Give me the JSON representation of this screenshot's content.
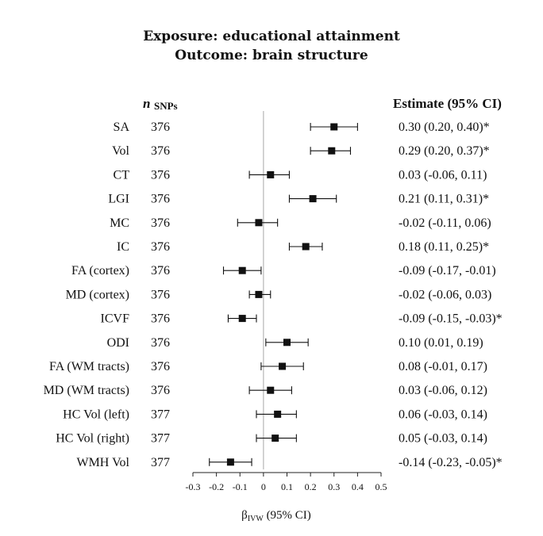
{
  "title_line1": "Exposure: educational attainment",
  "title_line2": "Outcome: brain structure",
  "header_n_symbol": "n",
  "header_n_subscript": "SNPs",
  "header_estimate": "Estimate (95% CI)",
  "chart_data": {
    "type": "forest",
    "title": "Exposure: educational attainment / Outcome: brain structure",
    "xlabel_main": "β",
    "xlabel_sub": "IVW",
    "xlabel_suffix": " (95% CI)",
    "xlim": [
      -0.3,
      0.5
    ],
    "xticks": [
      "-0.3",
      "-0.2",
      "-0.1",
      "0",
      "0.1",
      "0.2",
      "0.3",
      "0.4",
      "0.5"
    ],
    "reference_line": 0,
    "rows": [
      {
        "label": "SA",
        "n": "376",
        "est": 0.3,
        "lo": 0.2,
        "hi": 0.4,
        "text": "0.30 (0.20, 0.40)*"
      },
      {
        "label": "Vol",
        "n": "376",
        "est": 0.29,
        "lo": 0.2,
        "hi": 0.37,
        "text": "0.29 (0.20, 0.37)*"
      },
      {
        "label": "CT",
        "n": "376",
        "est": 0.03,
        "lo": -0.06,
        "hi": 0.11,
        "text": "0.03 (-0.06, 0.11)"
      },
      {
        "label": "LGI",
        "n": "376",
        "est": 0.21,
        "lo": 0.11,
        "hi": 0.31,
        "text": "0.21 (0.11, 0.31)*"
      },
      {
        "label": "MC",
        "n": "376",
        "est": -0.02,
        "lo": -0.11,
        "hi": 0.06,
        "text": "-0.02 (-0.11, 0.06)"
      },
      {
        "label": "IC",
        "n": "376",
        "est": 0.18,
        "lo": 0.11,
        "hi": 0.25,
        "text": "0.18 (0.11, 0.25)*"
      },
      {
        "label": "FA (cortex)",
        "n": "376",
        "est": -0.09,
        "lo": -0.17,
        "hi": -0.01,
        "text": "-0.09 (-0.17, -0.01)"
      },
      {
        "label": "MD (cortex)",
        "n": "376",
        "est": -0.02,
        "lo": -0.06,
        "hi": 0.03,
        "text": "-0.02 (-0.06, 0.03)"
      },
      {
        "label": "ICVF",
        "n": "376",
        "est": -0.09,
        "lo": -0.15,
        "hi": -0.03,
        "text": "-0.09 (-0.15, -0.03)*"
      },
      {
        "label": "ODI",
        "n": "376",
        "est": 0.1,
        "lo": 0.01,
        "hi": 0.19,
        "text": "0.10 (0.01, 0.19)"
      },
      {
        "label": "FA (WM tracts)",
        "n": "376",
        "est": 0.08,
        "lo": -0.01,
        "hi": 0.17,
        "text": "0.08 (-0.01, 0.17)"
      },
      {
        "label": "MD (WM tracts)",
        "n": "376",
        "est": 0.03,
        "lo": -0.06,
        "hi": 0.12,
        "text": "0.03 (-0.06, 0.12)"
      },
      {
        "label": "HC Vol (left)",
        "n": "377",
        "est": 0.06,
        "lo": -0.03,
        "hi": 0.14,
        "text": "0.06 (-0.03, 0.14)"
      },
      {
        "label": "HC Vol (right)",
        "n": "377",
        "est": 0.05,
        "lo": -0.03,
        "hi": 0.14,
        "text": "0.05 (-0.03, 0.14)"
      },
      {
        "label": "WMH Vol",
        "n": "377",
        "est": -0.14,
        "lo": -0.23,
        "hi": -0.05,
        "text": "-0.14 (-0.23, -0.05)*"
      }
    ],
    "colors": {
      "marker": "#111111",
      "whisker": "#111111",
      "reference_line": "#bbbbbb",
      "axis": "#222222"
    }
  }
}
